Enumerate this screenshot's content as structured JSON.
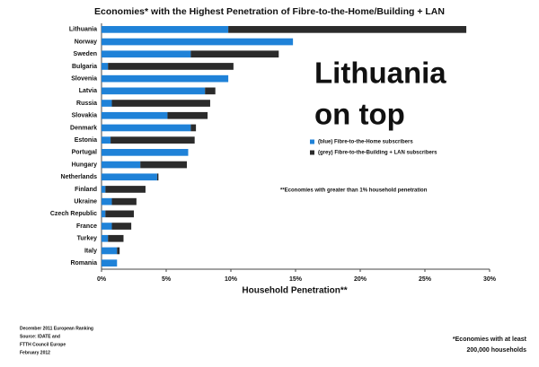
{
  "chart_data": {
    "type": "bar",
    "orientation": "horizontal",
    "stacked": true,
    "title": "Economies* with the Highest Penetration of Fibre-to-the-Home/Building + LAN",
    "x_label": "Household Penetration**",
    "categories": [
      "Lithuania",
      "Norway",
      "Sweden",
      "Bulgaria",
      "Slovenia",
      "Latvia",
      "Russia",
      "Slovakia",
      "Denmark",
      "Estonia",
      "Portugal",
      "Hungary",
      "Netherlands",
      "Finland",
      "Ukraine",
      "Czech Republic",
      "France",
      "Turkey",
      "Italy",
      "Romania"
    ],
    "series": [
      {
        "name": "(blue) Fibre-to-the-Home subscribers",
        "color": "#1f82d8",
        "values": [
          9.8,
          14.8,
          6.9,
          0.5,
          9.8,
          8.0,
          0.8,
          5.1,
          6.9,
          0.7,
          6.7,
          3.0,
          4.3,
          0.3,
          0.8,
          0.3,
          0.8,
          0.5,
          1.2,
          1.2
        ]
      },
      {
        "name": "(grey) Fibre-to-the-Building + LAN subscribers",
        "color": "#2b2b2b",
        "values": [
          18.4,
          0,
          6.8,
          9.7,
          0,
          0.8,
          7.6,
          3.1,
          0.4,
          6.5,
          0,
          3.6,
          0.1,
          3.1,
          1.9,
          2.2,
          1.5,
          1.2,
          0.2,
          0
        ]
      }
    ],
    "xlim": [
      0,
      30
    ],
    "xticks": [
      {
        "value": 0,
        "label": "0%"
      },
      {
        "value": 5,
        "label": "5%"
      },
      {
        "value": 10,
        "label": "10%"
      },
      {
        "value": 15,
        "label": "15%"
      },
      {
        "value": 20,
        "label": "20%"
      },
      {
        "value": 25,
        "label": "25%"
      },
      {
        "value": 30,
        "label": "30%"
      }
    ],
    "grid": false,
    "callout": [
      "Lithuania",
      "on top"
    ],
    "note": "**Economies with greater than 1% household penetration",
    "source": [
      "December 2011 European Ranking",
      "Source: IDATE and",
      "FTTH Council Europe",
      "February 2012"
    ],
    "footnote": [
      "*Economies with at least",
      "200,000 households"
    ]
  }
}
